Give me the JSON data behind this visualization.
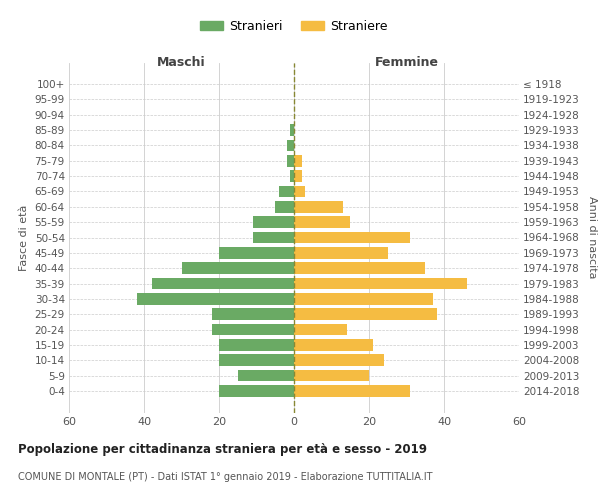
{
  "age_groups": [
    "100+",
    "95-99",
    "90-94",
    "85-89",
    "80-84",
    "75-79",
    "70-74",
    "65-69",
    "60-64",
    "55-59",
    "50-54",
    "45-49",
    "40-44",
    "35-39",
    "30-34",
    "25-29",
    "20-24",
    "15-19",
    "10-14",
    "5-9",
    "0-4"
  ],
  "birth_years": [
    "≤ 1918",
    "1919-1923",
    "1924-1928",
    "1929-1933",
    "1934-1938",
    "1939-1943",
    "1944-1948",
    "1949-1953",
    "1954-1958",
    "1959-1963",
    "1964-1968",
    "1969-1973",
    "1974-1978",
    "1979-1983",
    "1984-1988",
    "1989-1993",
    "1994-1998",
    "1999-2003",
    "2004-2008",
    "2009-2013",
    "2014-2018"
  ],
  "males": [
    0,
    0,
    0,
    1,
    2,
    2,
    1,
    4,
    5,
    11,
    11,
    20,
    30,
    38,
    42,
    22,
    22,
    20,
    20,
    15,
    20
  ],
  "females": [
    0,
    0,
    0,
    0,
    0,
    2,
    2,
    3,
    13,
    15,
    31,
    25,
    35,
    46,
    37,
    38,
    14,
    21,
    24,
    20,
    31
  ],
  "male_color": "#6aaa64",
  "female_color": "#f5bc42",
  "grid_color": "#cccccc",
  "center_line_color": "#888833",
  "background_color": "#ffffff",
  "title": "Popolazione per cittadinanza straniera per età e sesso - 2019",
  "subtitle": "COMUNE DI MONTALE (PT) - Dati ISTAT 1° gennaio 2019 - Elaborazione TUTTITALIA.IT",
  "ylabel_left": "Fasce di età",
  "ylabel_right": "Anni di nascita",
  "header_left": "Maschi",
  "header_right": "Femmine",
  "legend_male": "Stranieri",
  "legend_female": "Straniere",
  "xlim": 60
}
